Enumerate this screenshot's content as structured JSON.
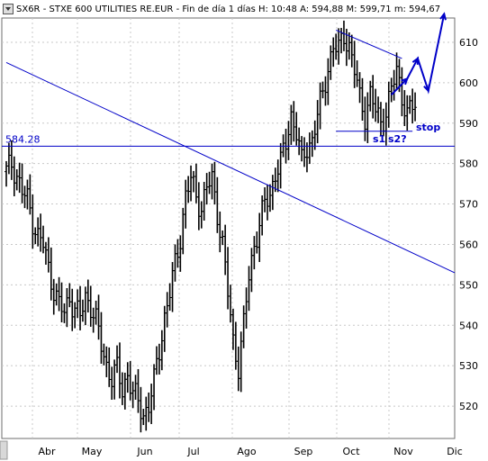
{
  "header": {
    "symbol": "SX6R",
    "name": "STXE 600 UTILITIES RE.EUR",
    "period": "Fin de día 1 días",
    "h_label": "H: 10:48",
    "a_label": "A: 594,88",
    "m_label": "M: 599,71",
    "min_label": "m: 594,67"
  },
  "chart_data": {
    "type": "bar",
    "subtype": "ohlc",
    "x": {
      "tick_labels": [
        "Abr",
        "May",
        "Jun",
        "Jul",
        "Ago",
        "Sep",
        "Oct",
        "Nov",
        "Dic"
      ],
      "range_months": [
        "2006-03-20",
        "2006-12-15"
      ]
    },
    "y": {
      "ylim": [
        512,
        616
      ],
      "tick_values": [
        520,
        530,
        540,
        550,
        560,
        570,
        580,
        590,
        600,
        610
      ]
    },
    "grid": true,
    "series": [
      {
        "kind": "ohlc",
        "close_points": [
          [
            0,
            578
          ],
          [
            2,
            580
          ],
          [
            4,
            577
          ],
          [
            6,
            573
          ],
          [
            8,
            571
          ],
          [
            10,
            566
          ],
          [
            12,
            562
          ],
          [
            14,
            560
          ],
          [
            16,
            554
          ],
          [
            18,
            549
          ],
          [
            20,
            545
          ],
          [
            22,
            543
          ],
          [
            24,
            547
          ],
          [
            26,
            544
          ],
          [
            28,
            542
          ],
          [
            30,
            547
          ],
          [
            32,
            545
          ],
          [
            34,
            541
          ],
          [
            36,
            535
          ],
          [
            38,
            530
          ],
          [
            40,
            527
          ],
          [
            42,
            529
          ],
          [
            44,
            524
          ],
          [
            46,
            528
          ],
          [
            48,
            523
          ],
          [
            50,
            521
          ],
          [
            52,
            518
          ],
          [
            54,
            520
          ],
          [
            56,
            526
          ],
          [
            58,
            534
          ],
          [
            60,
            542
          ],
          [
            62,
            548
          ],
          [
            64,
            555
          ],
          [
            66,
            562
          ],
          [
            68,
            572
          ],
          [
            70,
            576
          ],
          [
            72,
            572
          ],
          [
            74,
            569
          ],
          [
            76,
            574
          ],
          [
            78,
            576
          ],
          [
            80,
            568
          ],
          [
            82,
            560
          ],
          [
            84,
            548
          ],
          [
            86,
            536
          ],
          [
            88,
            530
          ],
          [
            90,
            540
          ],
          [
            92,
            552
          ],
          [
            94,
            560
          ],
          [
            96,
            565
          ],
          [
            98,
            570
          ],
          [
            100,
            572
          ],
          [
            102,
            578
          ],
          [
            104,
            580
          ],
          [
            106,
            585
          ],
          [
            108,
            592
          ],
          [
            110,
            588
          ],
          [
            112,
            580
          ],
          [
            114,
            584
          ],
          [
            116,
            586
          ],
          [
            118,
            592
          ],
          [
            120,
            597
          ],
          [
            122,
            604
          ],
          [
            124,
            609
          ],
          [
            126,
            608
          ],
          [
            128,
            612
          ],
          [
            130,
            609
          ],
          [
            132,
            603
          ],
          [
            134,
            596
          ],
          [
            136,
            592
          ],
          [
            138,
            597
          ],
          [
            140,
            593
          ],
          [
            142,
            590
          ],
          [
            144,
            593
          ],
          [
            146,
            598
          ],
          [
            148,
            603
          ],
          [
            150,
            597
          ],
          [
            152,
            592
          ],
          [
            154,
            594
          ],
          [
            156,
            594.67
          ]
        ]
      },
      {
        "kind": "trendline",
        "label": "downtrend",
        "points": [
          [
            0,
            605
          ],
          [
            170,
            553
          ]
        ]
      },
      {
        "kind": "hline",
        "label": "584.28",
        "value": 584.28
      },
      {
        "kind": "trendline",
        "label": "channel-top",
        "points": [
          [
            125,
            613
          ],
          [
            150,
            606
          ]
        ]
      },
      {
        "kind": "hline",
        "label": "support-stop",
        "value": 588,
        "x_range": [
          125,
          154
        ]
      },
      {
        "kind": "projection",
        "points": [
          [
            146,
            597
          ],
          [
            152,
            601
          ],
          [
            156,
            606
          ],
          [
            160,
            598
          ],
          [
            166,
            617
          ]
        ]
      }
    ],
    "annotations": [
      {
        "text": "stop",
        "value": 589
      },
      {
        "text": "s1",
        "value": 585
      },
      {
        "text": "s2?",
        "value": 585
      }
    ],
    "colors": {
      "price": "#000000",
      "lines": "#0000c8",
      "grid": "#c8c8c8",
      "border": "#6e6e6e"
    }
  }
}
